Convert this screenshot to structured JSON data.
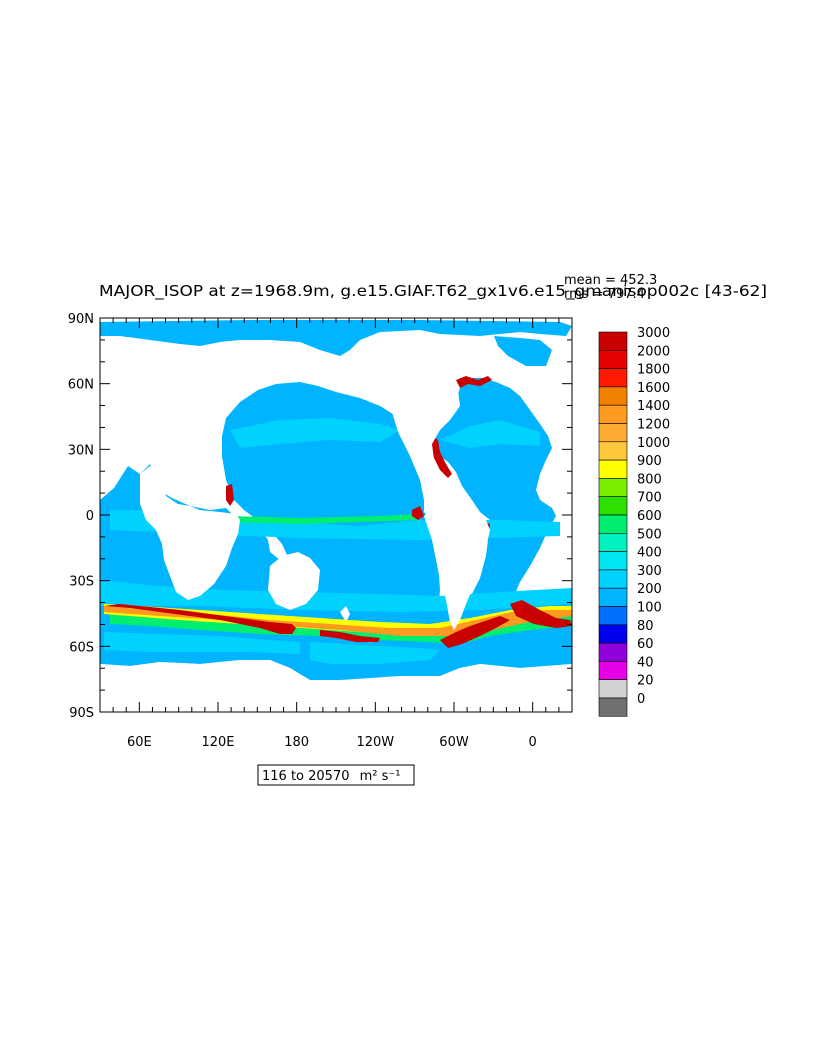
{
  "figure": {
    "title": "MAJOR_ISOP at z=1968.9m, g.e15.GIAF.T62_gx1v6.e15_gmanisop002c [43-62]",
    "stats": {
      "mean": "mean = 452.3",
      "rms": "rms = 797.4"
    },
    "range_label": "116 to 20570",
    "units": "m² s⁻¹"
  },
  "map": {
    "projection": "cylindrical equidistant",
    "lon_range": [
      30,
      390
    ],
    "lat_range": [
      -90,
      90
    ],
    "lat_ticks": [
      {
        "lat": 90,
        "label": "90N"
      },
      {
        "lat": 60,
        "label": "60N"
      },
      {
        "lat": 30,
        "label": "30N"
      },
      {
        "lat": 0,
        "label": "0"
      },
      {
        "lat": -30,
        "label": "30S"
      },
      {
        "lat": -60,
        "label": "60S"
      },
      {
        "lat": -90,
        "label": "90S"
      }
    ],
    "lon_ticks": [
      {
        "lon": 60,
        "label": "60E"
      },
      {
        "lon": 120,
        "label": "120E"
      },
      {
        "lon": 180,
        "label": "180"
      },
      {
        "lon": 240,
        "label": "120W"
      },
      {
        "lon": 300,
        "label": "60W"
      },
      {
        "lon": 360,
        "label": "0"
      }
    ],
    "land_color": "#ffffff",
    "ocean_base_color": "#00b4ff"
  },
  "legend": {
    "levels": [
      {
        "label": "3000",
        "color": "#c80000"
      },
      {
        "label": "2000",
        "color": "#e60000"
      },
      {
        "label": "1800",
        "color": "#ff1a00"
      },
      {
        "label": "1600",
        "color": "#f08000"
      },
      {
        "label": "1400",
        "color": "#ff9a20"
      },
      {
        "label": "1200",
        "color": "#ffaa30"
      },
      {
        "label": "1000",
        "color": "#ffc83c"
      },
      {
        "label": "900",
        "color": "#ffff00"
      },
      {
        "label": "800",
        "color": "#7aee00"
      },
      {
        "label": "700",
        "color": "#2ee000"
      },
      {
        "label": "600",
        "color": "#00ee70"
      },
      {
        "label": "500",
        "color": "#00f0c0"
      },
      {
        "label": "400",
        "color": "#00e6f0"
      },
      {
        "label": "300",
        "color": "#00d2ff"
      },
      {
        "label": "200",
        "color": "#00b4ff"
      },
      {
        "label": "100",
        "color": "#0070ff"
      },
      {
        "label": "80",
        "color": "#0000f0"
      },
      {
        "label": "60",
        "color": "#9000dc"
      },
      {
        "label": "40",
        "color": "#e600e6"
      },
      {
        "label": "20",
        "color": "#d2d2d2"
      },
      {
        "label": "0",
        "color": "#707070"
      }
    ]
  }
}
